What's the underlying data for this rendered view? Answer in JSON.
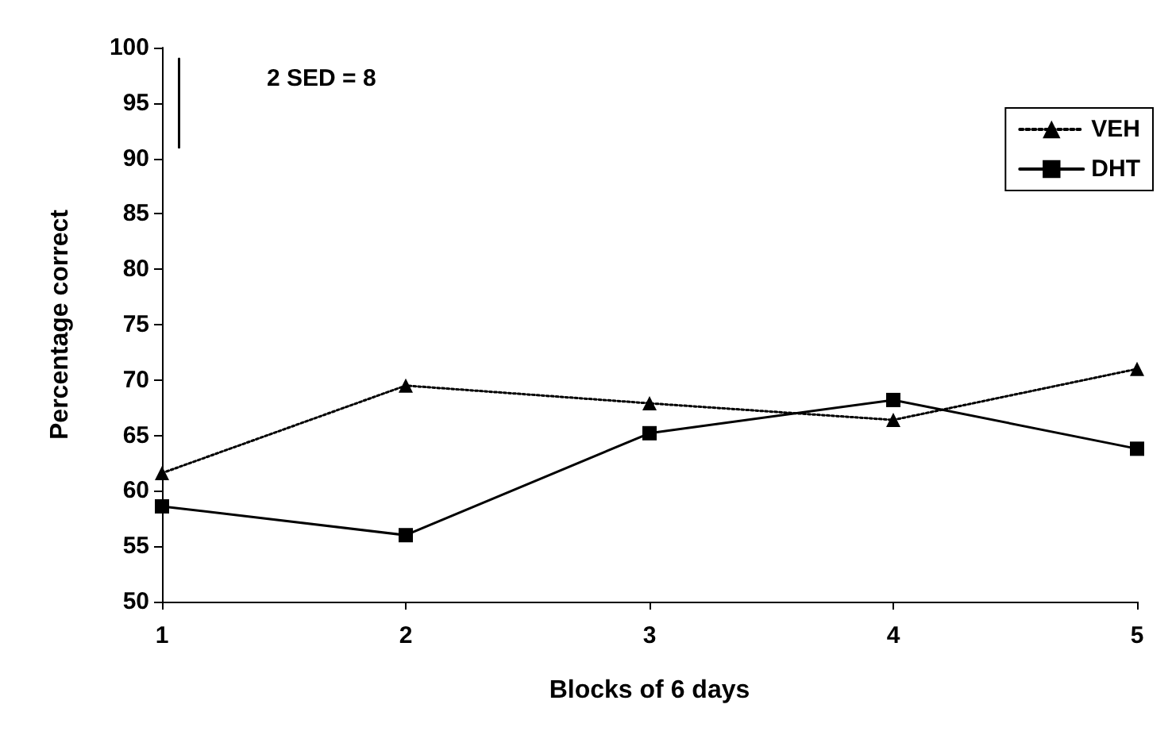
{
  "chart_data": {
    "type": "line",
    "xlabel": "Blocks of 6 days",
    "ylabel": "Percentage correct",
    "annotations": [
      "2 SED = 8"
    ],
    "x": [
      1,
      2,
      3,
      4,
      5
    ],
    "xlim": [
      1,
      5
    ],
    "xticks": [
      1,
      2,
      3,
      4,
      5
    ],
    "ylim": [
      50,
      100
    ],
    "yticks": [
      50,
      55,
      60,
      65,
      70,
      75,
      80,
      85,
      90,
      95,
      100
    ],
    "series": [
      {
        "name": "VEH",
        "color": "#000000",
        "marker": "triangle",
        "line_style": "dotted",
        "values": [
          61.6,
          69.5,
          67.9,
          66.4,
          71
        ]
      },
      {
        "name": "DHT",
        "color": "#000000",
        "marker": "square",
        "line_style": "solid",
        "values": [
          58.6,
          56,
          65.2,
          68.2,
          63.8
        ]
      },
      {
        "type": "line",
        "color": "#000000",
        "marker": "none",
        "line_style": "solid",
        "x": [
          1.07,
          1.07
        ],
        "values": [
          91,
          99
        ]
      }
    ],
    "legend": "top right",
    "grid": false
  }
}
